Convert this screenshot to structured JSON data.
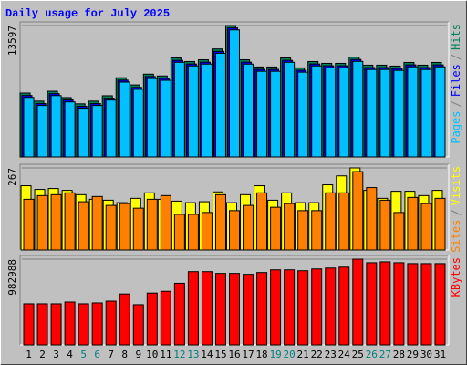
{
  "chart_data": [
    {
      "type": "bar",
      "title": "Daily usage for July 2025",
      "categories": [
        1,
        2,
        3,
        4,
        5,
        6,
        7,
        8,
        9,
        10,
        11,
        12,
        13,
        14,
        15,
        16,
        17,
        18,
        19,
        20,
        21,
        22,
        23,
        24,
        25,
        26,
        27,
        28,
        29,
        30,
        31
      ],
      "category_colors": [
        "#000000",
        "#000000",
        "#000000",
        "#000000",
        "#008080",
        "#008080",
        "#000000",
        "#000000",
        "#000000",
        "#000000",
        "#000000",
        "#008080",
        "#008080",
        "#000000",
        "#000000",
        "#000000",
        "#000000",
        "#000000",
        "#008080",
        "#008080",
        "#000000",
        "#000000",
        "#000000",
        "#000000",
        "#000000",
        "#008080",
        "#008080",
        "#000000",
        "#000000",
        "#000000",
        "#000000"
      ],
      "ylim": [
        0,
        13597
      ],
      "yticks": [
        13597
      ],
      "separator": "/",
      "series": [
        {
          "name": "Hits",
          "color": "#00805c",
          "values": [
            6610,
            5772,
            6796,
            6145,
            5493,
            5772,
            6331,
            8193,
            7448,
            8565,
            8379,
            10241,
            9869,
            10055,
            11172,
            13597,
            10055,
            9310,
            9310,
            10241,
            9217,
            9869,
            9682,
            9682,
            10334,
            9496,
            9496,
            9403,
            9776,
            9496,
            9776
          ]
        },
        {
          "name": "Files",
          "color": "#0000ff",
          "values": [
            6360,
            5522,
            6546,
            5895,
            5243,
            5522,
            6081,
            7943,
            7198,
            8315,
            8129,
            9991,
            9619,
            9805,
            10922,
            13347,
            9805,
            9060,
            9060,
            9991,
            8967,
            9619,
            9432,
            9432,
            10084,
            9246,
            9246,
            9153,
            9526,
            9246,
            9526
          ]
        },
        {
          "name": "Pages",
          "color": "#00c0ff",
          "values": [
            6160,
            5322,
            6346,
            5695,
            5043,
            5322,
            5881,
            7743,
            6998,
            8115,
            7929,
            9791,
            9419,
            9605,
            10722,
            13147,
            9605,
            8860,
            8860,
            9791,
            8767,
            9419,
            9232,
            9232,
            9884,
            9046,
            9046,
            8953,
            9326,
            9046,
            9326
          ]
        }
      ]
    },
    {
      "type": "bar",
      "ylim": [
        0,
        267
      ],
      "yticks": [
        267
      ],
      "separator": "/",
      "series": [
        {
          "name": "Visits",
          "color": "#ffff00",
          "values": [
            209,
            197,
            200,
            194,
            180,
            165,
            162,
            154,
            168,
            186,
            165,
            159,
            154,
            157,
            189,
            154,
            180,
            209,
            162,
            186,
            154,
            154,
            212,
            241,
            267,
            194,
            168,
            191,
            191,
            177,
            194
          ]
        },
        {
          "name": "Sites",
          "color": "#ff8000",
          "values": [
            165,
            177,
            180,
            186,
            157,
            174,
            145,
            151,
            136,
            165,
            177,
            116,
            116,
            122,
            180,
            128,
            145,
            186,
            139,
            151,
            128,
            128,
            186,
            186,
            255,
            203,
            162,
            122,
            171,
            151,
            168
          ]
        }
      ]
    },
    {
      "type": "bar",
      "ylim": [
        0,
        982988
      ],
      "yticks": [
        982988
      ],
      "series": [
        {
          "name": "KBytes",
          "color": "#ff0000",
          "values": [
            471040,
            471040,
            471040,
            491520,
            471040,
            481280,
            501760,
            583680,
            460800,
            593920,
            614400,
            706560,
            839680,
            839680,
            819200,
            819200,
            808960,
            829440,
            860160,
            860160,
            849920,
            870400,
            880640,
            890880,
            982988,
            942080,
            952320,
            942080,
            931840,
            931840,
            931840
          ]
        }
      ]
    }
  ]
}
